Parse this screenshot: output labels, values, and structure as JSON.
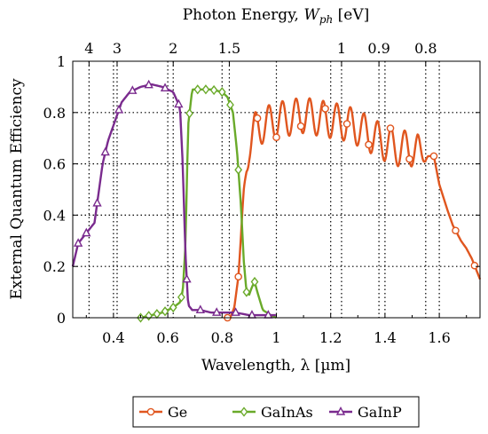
{
  "chart_data": {
    "type": "line",
    "xlabel": "Wavelength, λ [µm]",
    "ylabel": "External Quantum Efficiency",
    "top_axis_label_prefix": "Photon Energy, ",
    "top_axis_label_var": "W",
    "top_axis_label_sub": "ph",
    "top_axis_label_suffix": " [eV]",
    "xlim": [
      0.25,
      1.75
    ],
    "ylim": [
      0,
      1
    ],
    "x_ticks": [
      0.4,
      0.6,
      0.8,
      1,
      1.2,
      1.4,
      1.6
    ],
    "x_tick_labels": [
      "0.4",
      "0.6",
      "0.8",
      "1",
      "1.2",
      "1.4",
      "1.6"
    ],
    "y_ticks": [
      0,
      0.2,
      0.4,
      0.6,
      0.8,
      1
    ],
    "y_tick_labels": [
      "0",
      "0.2",
      "0.4",
      "0.6",
      "0.8",
      "1"
    ],
    "top_ticks_ev": [
      4,
      3,
      2,
      1.5,
      1,
      0.9,
      0.8
    ],
    "top_tick_labels": [
      "4",
      "3",
      "2",
      "1.5",
      "1",
      "0.9",
      "0.8"
    ],
    "grid": true,
    "legend_position": "bottom-center",
    "series": [
      {
        "name": "Ge",
        "color": "#e0561f",
        "marker": "circle",
        "x": [
          0.83,
          0.845,
          0.86,
          0.87,
          0.88,
          0.89,
          0.9,
          0.92,
          0.95,
          1.0,
          1.05,
          1.1,
          1.15,
          1.2,
          1.25,
          1.3,
          1.35,
          1.4,
          1.45,
          1.5,
          1.55,
          1.58,
          1.6,
          1.63,
          1.65,
          1.68,
          1.7,
          1.72,
          1.75
        ],
        "y": [
          0.0,
          0.04,
          0.16,
          0.31,
          0.48,
          0.6,
          0.68,
          0.73,
          0.75,
          0.77,
          0.78,
          0.79,
          0.78,
          0.77,
          0.76,
          0.74,
          0.71,
          0.68,
          0.66,
          0.66,
          0.63,
          0.63,
          0.52,
          0.42,
          0.36,
          0.3,
          0.27,
          0.23,
          0.15
        ],
        "osc_amplitude": 0.07,
        "osc_period": 0.05,
        "osc_range": [
          0.86,
          1.56
        ],
        "marker_x": [
          0.82,
          0.86,
          0.93,
          1.0,
          1.09,
          1.18,
          1.26,
          1.34,
          1.42,
          1.49,
          1.58,
          1.66,
          1.73
        ]
      },
      {
        "name": "GaInAs",
        "color": "#6aaa2a",
        "marker": "diamond",
        "x": [
          0.5,
          0.54,
          0.58,
          0.62,
          0.645,
          0.655,
          0.665,
          0.675,
          0.69,
          0.72,
          0.76,
          0.8,
          0.82,
          0.84,
          0.855,
          0.87,
          0.88,
          0.89,
          0.9,
          0.91,
          0.92,
          0.93,
          0.95,
          0.98,
          1.0
        ],
        "y": [
          0.0,
          0.01,
          0.02,
          0.04,
          0.06,
          0.1,
          0.28,
          0.75,
          0.89,
          0.89,
          0.89,
          0.88,
          0.86,
          0.8,
          0.65,
          0.43,
          0.22,
          0.1,
          0.09,
          0.12,
          0.14,
          0.1,
          0.03,
          0.01,
          0.0
        ],
        "marker_x": [
          0.5,
          0.53,
          0.56,
          0.59,
          0.62,
          0.65,
          0.68,
          0.71,
          0.74,
          0.77,
          0.8,
          0.83,
          0.86,
          0.89,
          0.92
        ]
      },
      {
        "name": "GaInP",
        "color": "#7a2b8e",
        "marker": "triangle",
        "x": [
          0.25,
          0.27,
          0.3,
          0.33,
          0.36,
          0.38,
          0.4,
          0.43,
          0.46,
          0.5,
          0.54,
          0.58,
          0.62,
          0.645,
          0.655,
          0.665,
          0.675,
          0.69,
          0.72,
          0.76,
          0.8,
          0.85,
          0.9,
          0.95,
          1.0
        ],
        "y": [
          0.2,
          0.29,
          0.33,
          0.37,
          0.6,
          0.69,
          0.75,
          0.84,
          0.88,
          0.9,
          0.91,
          0.9,
          0.88,
          0.82,
          0.6,
          0.25,
          0.05,
          0.03,
          0.03,
          0.02,
          0.02,
          0.02,
          0.01,
          0.01,
          0.01
        ],
        "marker_x": [
          0.27,
          0.3,
          0.34,
          0.37,
          0.42,
          0.47,
          0.53,
          0.59,
          0.64,
          0.67,
          0.72,
          0.78,
          0.85,
          0.91,
          0.97
        ]
      }
    ]
  }
}
